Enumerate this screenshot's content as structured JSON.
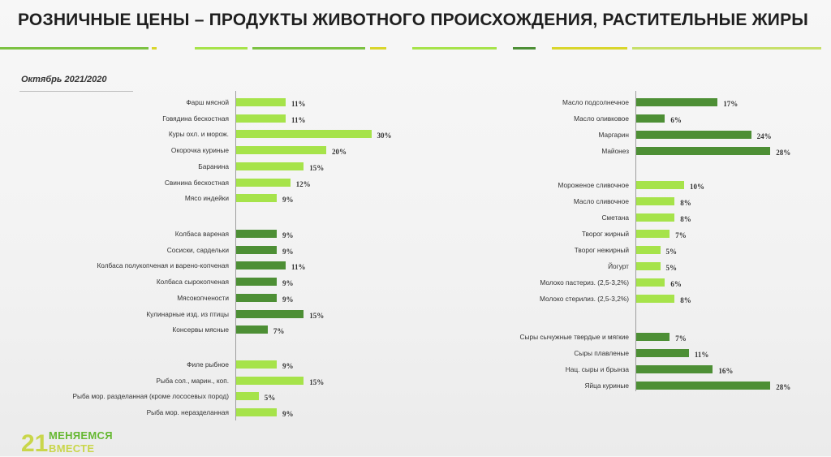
{
  "title": "РОЗНИЧНЫЕ ЦЕНЫ – ПРОДУКТЫ ЖИВОТНОГО ПРОИСХОЖДЕНИЯ, РАСТИТЕЛЬНЫЕ ЖИРЫ",
  "subtitle": "Октябрь 2021/2020",
  "logo": {
    "number": "21",
    "line1": "МЕНЯЕМСЯ",
    "line2": "ВМЕСТЕ"
  },
  "colors": {
    "light_green": "#a6e34a",
    "dark_green": "#4d8f35",
    "accent_yellow": "#d9d62c"
  },
  "chart_data": [
    {
      "type": "bar",
      "orientation": "horizontal",
      "panel": "left",
      "groups": [
        {
          "color": "light",
          "categories": [
            "Фарш мясной",
            "Говядина бескостная",
            "Куры охл. и морож.",
            "Окорочка куриные",
            "Баранина",
            "Свинина бескостная",
            "Мясо индейки"
          ],
          "labels": [
            "11%",
            "11%",
            "30%",
            "20%",
            "15%",
            "12%",
            "9%"
          ],
          "values": [
            11,
            11,
            30,
            20,
            15,
            12,
            9
          ]
        },
        {
          "color": "dark",
          "categories": [
            "Колбаса вареная",
            "Сосиски, сардельки",
            "Колбаса полукопченая и варено-копченая",
            "Колбаса сырокопченая",
            "Мясокопчености",
            "Кулинарные изд. из птицы",
            "Консервы мясные"
          ],
          "labels": [
            "9%",
            "9%",
            "11%",
            "9%",
            "9%",
            "15%",
            "7%"
          ],
          "values": [
            9,
            9,
            11,
            9,
            9,
            15,
            7
          ]
        },
        {
          "color": "light",
          "categories": [
            "Филе рыбное",
            "Рыба сол., марин., коп.",
            "Рыба мор. разделанная (кроме лососевых пород)",
            "Рыба мор. неразделанная"
          ],
          "labels": [
            "9%",
            "15%",
            "5%",
            "9%"
          ],
          "values": [
            9,
            15,
            5,
            9
          ]
        }
      ]
    },
    {
      "type": "bar",
      "orientation": "horizontal",
      "panel": "right",
      "groups": [
        {
          "color": "dark",
          "categories": [
            "Масло подсолнечное",
            "Масло оливковое",
            "Маргарин",
            "Майонез"
          ],
          "labels": [
            "17%",
            "6%",
            "24%",
            "28%"
          ],
          "values": [
            17,
            6,
            24,
            28
          ]
        },
        {
          "color": "light",
          "categories": [
            "Мороженое сливочное",
            "Масло сливочное",
            "Сметана",
            "Творог жирный",
            "Творог нежирный",
            "Йогурт",
            "Молоко пастериз. (2,5-3,2%)",
            "Молоко стерилиз. (2,5-3,2%)"
          ],
          "labels": [
            "10%",
            "8%",
            "8%",
            "7%",
            "5%",
            "5%",
            "6%",
            "8%"
          ],
          "values": [
            10,
            8,
            8,
            7,
            5,
            5,
            6,
            8
          ]
        },
        {
          "color": "dark",
          "categories": [
            "Сыры сычужные твердые и мягкие",
            "Сыры плавленые",
            "Нац. сыры и брынза",
            "Яйца куриные"
          ],
          "labels": [
            "7%",
            "11%",
            "16%",
            "28%"
          ],
          "values": [
            7,
            11,
            16,
            28
          ]
        }
      ]
    }
  ]
}
